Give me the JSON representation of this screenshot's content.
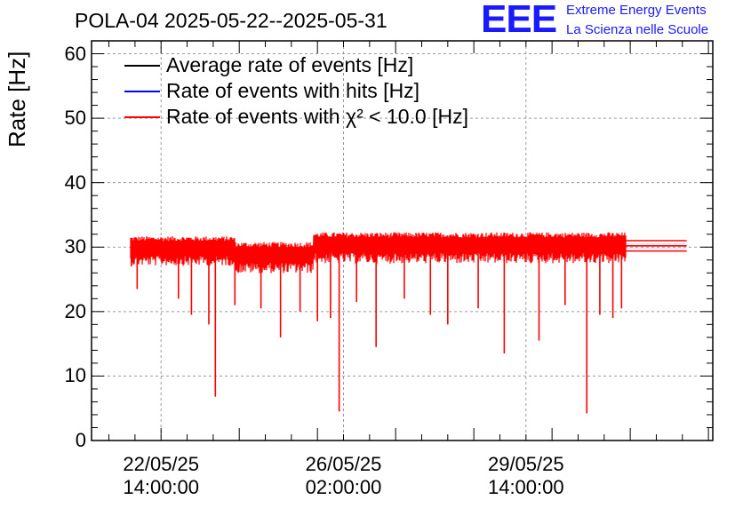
{
  "title": "POLA-04 2025-05-22--2025-05-31",
  "logo": {
    "mark": "EEE",
    "line1": "Extreme Energy Events",
    "line2": "La Scienza nelle Scuole",
    "color": "#1a1aff"
  },
  "chart_data": {
    "type": "line",
    "title": "POLA-04 2025-05-22--2025-05-31",
    "ylabel": "Rate [Hz]",
    "xlabel": "",
    "ylim": [
      0,
      62
    ],
    "yticks": [
      0,
      10,
      20,
      30,
      40,
      50,
      60
    ],
    "xlim": [
      "2025-05-21 06:00:00",
      "2025-06-02 04:00:00"
    ],
    "xticks": [
      {
        "label_date": "22/05/25",
        "label_time": "14:00:00",
        "value": "2025-05-22 14:00:00"
      },
      {
        "label_date": "26/05/25",
        "label_time": "02:00:00",
        "value": "2025-05-26 02:00:00"
      },
      {
        "label_date": "29/05/25",
        "label_time": "14:00:00",
        "value": "2025-05-29 14:00:00"
      }
    ],
    "grid": true,
    "legend_position": "top-left",
    "series": [
      {
        "name": "Average rate of events [Hz]",
        "color": "#000000",
        "values": [
          {
            "from": "2025-05-31 12:00:00",
            "to": "2025-06-01 16:00:00",
            "y": 30.5
          }
        ]
      },
      {
        "name": "Rate of events with hits [Hz]",
        "color": "#0000ff",
        "values": [
          {
            "from": "2025-05-31 12:00:00",
            "to": "2025-06-01 16:00:00",
            "y": 29.8
          }
        ]
      },
      {
        "name": "Rate of events with χ² < 10.0 [Hz]",
        "color": "#ff0000",
        "baseline_segments": [
          {
            "from": "2025-05-22 00:00:00",
            "to": "2025-05-24 00:00:00",
            "mean": 30.0,
            "spread": 1.7
          },
          {
            "from": "2025-05-24 00:00:00",
            "to": "2025-05-25 12:00:00",
            "mean": 29.0,
            "spread": 1.8
          },
          {
            "from": "2025-05-25 12:00:00",
            "to": "2025-05-31 12:00:00",
            "mean": 30.5,
            "spread": 1.8
          }
        ],
        "dips": [
          {
            "x": "2025-05-22 00:20:00",
            "y": 27.0
          },
          {
            "x": "2025-05-22 03:00:00",
            "y": 23.5
          },
          {
            "x": "2025-05-22 22:00:00",
            "y": 22.0
          },
          {
            "x": "2025-05-23 04:00:00",
            "y": 19.5
          },
          {
            "x": "2025-05-23 12:00:00",
            "y": 18.0
          },
          {
            "x": "2025-05-23 15:00:00",
            "y": 6.8
          },
          {
            "x": "2025-05-24 00:00:00",
            "y": 21.0
          },
          {
            "x": "2025-05-24 12:00:00",
            "y": 20.5
          },
          {
            "x": "2025-05-24 21:00:00",
            "y": 16.0
          },
          {
            "x": "2025-05-25 06:00:00",
            "y": 20.0
          },
          {
            "x": "2025-05-25 14:00:00",
            "y": 18.5
          },
          {
            "x": "2025-05-25 20:00:00",
            "y": 19.0
          },
          {
            "x": "2025-05-26 00:00:00",
            "y": 4.5
          },
          {
            "x": "2025-05-26 08:00:00",
            "y": 21.5
          },
          {
            "x": "2025-05-26 17:00:00",
            "y": 14.5
          },
          {
            "x": "2025-05-27 06:00:00",
            "y": 22.0
          },
          {
            "x": "2025-05-27 18:00:00",
            "y": 19.5
          },
          {
            "x": "2025-05-28 02:00:00",
            "y": 18.0
          },
          {
            "x": "2025-05-28 16:00:00",
            "y": 20.5
          },
          {
            "x": "2025-05-29 04:00:00",
            "y": 13.5
          },
          {
            "x": "2025-05-29 20:00:00",
            "y": 15.5
          },
          {
            "x": "2025-05-30 08:00:00",
            "y": 21.0
          },
          {
            "x": "2025-05-30 18:00:00",
            "y": 4.2
          },
          {
            "x": "2025-05-31 00:00:00",
            "y": 19.5
          },
          {
            "x": "2025-05-31 06:00:00",
            "y": 19.0
          },
          {
            "x": "2025-05-31 10:00:00",
            "y": 20.5
          }
        ],
        "tail": [
          {
            "from": "2025-05-31 12:00:00",
            "to": "2025-06-01 16:00:00",
            "y": 29.4
          },
          {
            "from": "2025-05-31 12:00:00",
            "to": "2025-06-01 16:00:00",
            "y": 30.2
          },
          {
            "from": "2025-05-31 12:00:00",
            "to": "2025-06-01 16:00:00",
            "y": 31.0
          }
        ]
      }
    ]
  }
}
